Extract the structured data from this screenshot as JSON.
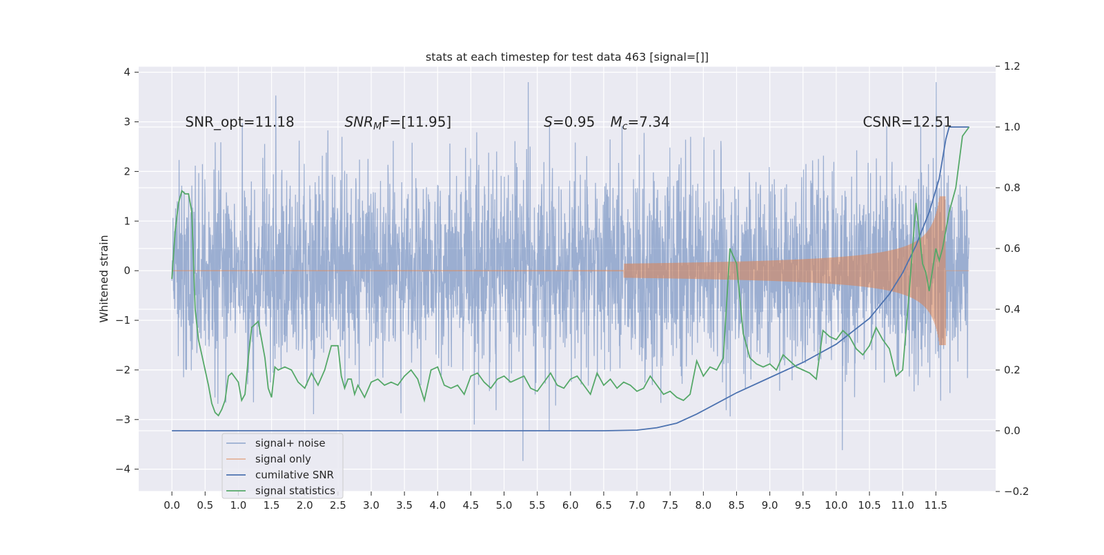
{
  "chart_data": {
    "type": "line",
    "title": "stats at each timestep for test data 463 [signal=[]]",
    "ylabel": "Whitened strain",
    "xlabel": "",
    "grid": true,
    "legend_position": "lower-left",
    "x_ticks": [
      "0.0",
      "0.5",
      "1.0",
      "1.5",
      "2.0",
      "2.5",
      "3.0",
      "3.5",
      "4.0",
      "4.5",
      "5.0",
      "5.5",
      "6.0",
      "6.5",
      "7.0",
      "7.5",
      "8.0",
      "8.5",
      "9.0",
      "9.5",
      "10.0",
      "10.5",
      "11.0",
      "11.5"
    ],
    "y_ticks": [
      "4",
      "3",
      "2",
      "1",
      "0",
      "−1",
      "−2",
      "−3",
      "−4"
    ],
    "y2_ticks": [
      "1.2",
      "1.0",
      "0.8",
      "0.6",
      "0.4",
      "0.2",
      "0.0",
      "−0.2"
    ],
    "xlim": [
      -0.5,
      12.4
    ],
    "ylim": [
      -4.45,
      4.12
    ],
    "y2lim": [
      -0.2,
      1.2
    ],
    "annotations": [
      {
        "text": "SNR_opt=11.18",
        "x": 0.2,
        "y": 3.0
      },
      {
        "text_main": "SNR",
        "text_sub": "M",
        "text_rest": "F=[11.95]",
        "x": 2.6,
        "y": 3.0
      },
      {
        "text_main": "S",
        "text_rest": "=0.95",
        "x": 5.6,
        "y": 3.0
      },
      {
        "text_main": "M",
        "text_sub": "c",
        "text_rest": "=7.34",
        "x": 6.6,
        "y": 3.0
      },
      {
        "text": "CSNR=12.51",
        "x": 10.4,
        "y": 3.0
      }
    ],
    "series": [
      {
        "name": "signal+ noise",
        "color": "#4c72b0",
        "axis": "left",
        "noise_sigma": 1.0,
        "x_range": [
          0.0,
          12.0
        ]
      },
      {
        "name": "signal only",
        "color": "#dd8452",
        "axis": "left",
        "x_range": [
          0.0,
          12.0
        ],
        "chirp_end": 11.65,
        "peak_amplitude": 1.5
      },
      {
        "name": "cumilative SNR",
        "color": "#4c72b0",
        "axis": "right",
        "x": [
          0.0,
          6.5,
          7.0,
          7.3,
          7.6,
          7.9,
          8.2,
          8.5,
          9.0,
          9.5,
          10.0,
          10.5,
          10.8,
          11.0,
          11.2,
          11.4,
          11.55,
          11.65,
          11.7,
          12.0
        ],
        "y": [
          0.0,
          0.0,
          0.002,
          0.01,
          0.025,
          0.055,
          0.09,
          0.125,
          0.175,
          0.225,
          0.285,
          0.37,
          0.45,
          0.52,
          0.61,
          0.72,
          0.83,
          0.96,
          1.0,
          1.0
        ]
      },
      {
        "name": "signal statistics",
        "color": "#55a868",
        "axis": "right",
        "x": [
          0.0,
          0.05,
          0.1,
          0.15,
          0.2,
          0.25,
          0.3,
          0.35,
          0.4,
          0.5,
          0.55,
          0.6,
          0.65,
          0.7,
          0.75,
          0.8,
          0.85,
          0.9,
          1.0,
          1.05,
          1.1,
          1.15,
          1.2,
          1.3,
          1.4,
          1.45,
          1.5,
          1.55,
          1.6,
          1.7,
          1.8,
          1.9,
          2.0,
          2.1,
          2.2,
          2.3,
          2.4,
          2.5,
          2.55,
          2.6,
          2.65,
          2.7,
          2.75,
          2.8,
          2.9,
          3.0,
          3.1,
          3.2,
          3.3,
          3.4,
          3.5,
          3.6,
          3.7,
          3.8,
          3.9,
          4.0,
          4.1,
          4.2,
          4.3,
          4.4,
          4.5,
          4.6,
          4.7,
          4.8,
          4.9,
          5.0,
          5.1,
          5.2,
          5.3,
          5.4,
          5.5,
          5.6,
          5.7,
          5.8,
          5.9,
          6.0,
          6.1,
          6.2,
          6.3,
          6.4,
          6.5,
          6.6,
          6.7,
          6.8,
          6.9,
          7.0,
          7.1,
          7.2,
          7.3,
          7.4,
          7.5,
          7.6,
          7.7,
          7.8,
          7.9,
          8.0,
          8.1,
          8.2,
          8.3,
          8.4,
          8.5,
          8.6,
          8.7,
          8.8,
          8.9,
          9.0,
          9.1,
          9.2,
          9.3,
          9.4,
          9.5,
          9.6,
          9.7,
          9.8,
          9.9,
          10.0,
          10.1,
          10.2,
          10.3,
          10.4,
          10.5,
          10.6,
          10.7,
          10.8,
          10.9,
          11.0,
          11.1,
          11.2,
          11.3,
          11.35,
          11.4,
          11.5,
          11.55,
          11.6,
          11.7,
          11.8,
          11.9,
          12.0
        ],
        "y": [
          0.5,
          0.66,
          0.75,
          0.79,
          0.78,
          0.78,
          0.72,
          0.4,
          0.3,
          0.2,
          0.15,
          0.09,
          0.06,
          0.05,
          0.07,
          0.1,
          0.18,
          0.19,
          0.16,
          0.1,
          0.12,
          0.24,
          0.34,
          0.36,
          0.24,
          0.14,
          0.11,
          0.21,
          0.2,
          0.21,
          0.2,
          0.16,
          0.14,
          0.19,
          0.15,
          0.2,
          0.28,
          0.28,
          0.18,
          0.14,
          0.17,
          0.17,
          0.12,
          0.15,
          0.11,
          0.16,
          0.17,
          0.15,
          0.16,
          0.15,
          0.18,
          0.2,
          0.17,
          0.1,
          0.2,
          0.21,
          0.15,
          0.14,
          0.15,
          0.12,
          0.18,
          0.19,
          0.16,
          0.14,
          0.17,
          0.18,
          0.16,
          0.17,
          0.18,
          0.14,
          0.13,
          0.16,
          0.19,
          0.15,
          0.14,
          0.17,
          0.18,
          0.15,
          0.12,
          0.19,
          0.15,
          0.17,
          0.14,
          0.16,
          0.15,
          0.13,
          0.14,
          0.18,
          0.15,
          0.12,
          0.13,
          0.11,
          0.1,
          0.12,
          0.23,
          0.18,
          0.21,
          0.2,
          0.24,
          0.6,
          0.55,
          0.32,
          0.24,
          0.22,
          0.21,
          0.22,
          0.2,
          0.25,
          0.23,
          0.21,
          0.2,
          0.19,
          0.17,
          0.33,
          0.31,
          0.3,
          0.33,
          0.31,
          0.27,
          0.25,
          0.28,
          0.34,
          0.3,
          0.27,
          0.18,
          0.2,
          0.46,
          0.75,
          0.55,
          0.52,
          0.46,
          0.6,
          0.56,
          0.6,
          0.72,
          0.8,
          0.97,
          1.0
        ]
      }
    ]
  }
}
